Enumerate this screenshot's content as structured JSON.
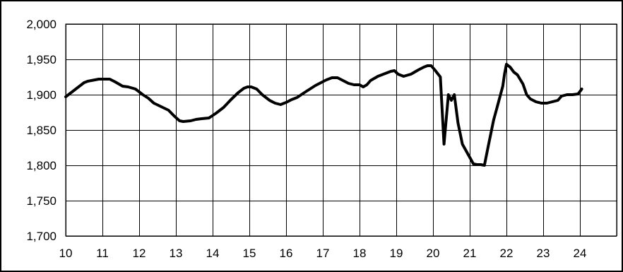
{
  "colors": {
    "background": "#ffffff",
    "line": "#000000",
    "grid": "#000000"
  },
  "chart_data": {
    "type": "line",
    "title": "",
    "xlabel": "",
    "ylabel": "",
    "xlim": [
      10,
      25
    ],
    "ylim": [
      1700,
      2000
    ],
    "grid": true,
    "legend": "none",
    "x_ticks": [
      10,
      11,
      12,
      13,
      14,
      15,
      16,
      17,
      18,
      19,
      20,
      21,
      22,
      23,
      24
    ],
    "x_tick_labels": [
      "10",
      "11",
      "12",
      "13",
      "14",
      "15",
      "16",
      "17",
      "18",
      "19",
      "20",
      "21",
      "22",
      "23",
      "24"
    ],
    "y_ticks": [
      1700,
      1750,
      1800,
      1850,
      1900,
      1950,
      2000
    ],
    "y_tick_labels": [
      "1,700",
      "1,750",
      "1,800",
      "1,850",
      "1,900",
      "1,950",
      "2,000"
    ],
    "series": [
      {
        "x": [
          10.0,
          10.2,
          10.4,
          10.5,
          10.6,
          10.8,
          10.9,
          11.0,
          11.2,
          11.35,
          11.55,
          11.7,
          11.9,
          12.0,
          12.1,
          12.25,
          12.4,
          12.6,
          12.8,
          12.95,
          13.1,
          13.2,
          13.4,
          13.55,
          13.7,
          13.9,
          14.1,
          14.3,
          14.5,
          14.7,
          14.85,
          14.95,
          15.05,
          15.2,
          15.35,
          15.55,
          15.7,
          15.85,
          16.0,
          16.15,
          16.3,
          16.5,
          16.65,
          16.8,
          16.95,
          17.1,
          17.25,
          17.4,
          17.55,
          17.7,
          17.85,
          18.0,
          18.1,
          18.2,
          18.3,
          18.5,
          18.7,
          18.85,
          18.95,
          19.05,
          19.2,
          19.4,
          19.6,
          19.75,
          19.85,
          19.95,
          20.05,
          20.2,
          20.3,
          20.42,
          20.5,
          20.58,
          20.68,
          20.8,
          20.95,
          21.1,
          21.2,
          21.3,
          21.4,
          21.5,
          21.65,
          21.75,
          21.9,
          21.95,
          22.0,
          22.1,
          22.2,
          22.3,
          22.45,
          22.55,
          22.65,
          22.8,
          22.95,
          23.1,
          23.25,
          23.4,
          23.5,
          23.65,
          23.8,
          23.95,
          24.05
        ],
        "values": [
          1897,
          1905,
          1913,
          1917,
          1919,
          1921,
          1922,
          1922,
          1922,
          1918,
          1912,
          1911,
          1908,
          1904,
          1900,
          1895,
          1888,
          1883,
          1878,
          1870,
          1863,
          1862,
          1863,
          1865,
          1866,
          1867,
          1874,
          1882,
          1893,
          1903,
          1909,
          1911,
          1911,
          1908,
          1900,
          1892,
          1888,
          1886,
          1889,
          1893,
          1896,
          1903,
          1908,
          1913,
          1917,
          1921,
          1924,
          1924,
          1920,
          1916,
          1914,
          1914,
          1911,
          1914,
          1920,
          1926,
          1930,
          1933,
          1934,
          1929,
          1926,
          1929,
          1935,
          1939,
          1941,
          1941,
          1935,
          1925,
          1830,
          1900,
          1892,
          1900,
          1860,
          1830,
          1816,
          1802,
          1801,
          1801,
          1800,
          1826,
          1864,
          1883,
          1912,
          1930,
          1943,
          1939,
          1932,
          1928,
          1915,
          1900,
          1894,
          1890,
          1888,
          1888,
          1890,
          1892,
          1898,
          1900,
          1900,
          1901,
          1908
        ]
      }
    ]
  }
}
